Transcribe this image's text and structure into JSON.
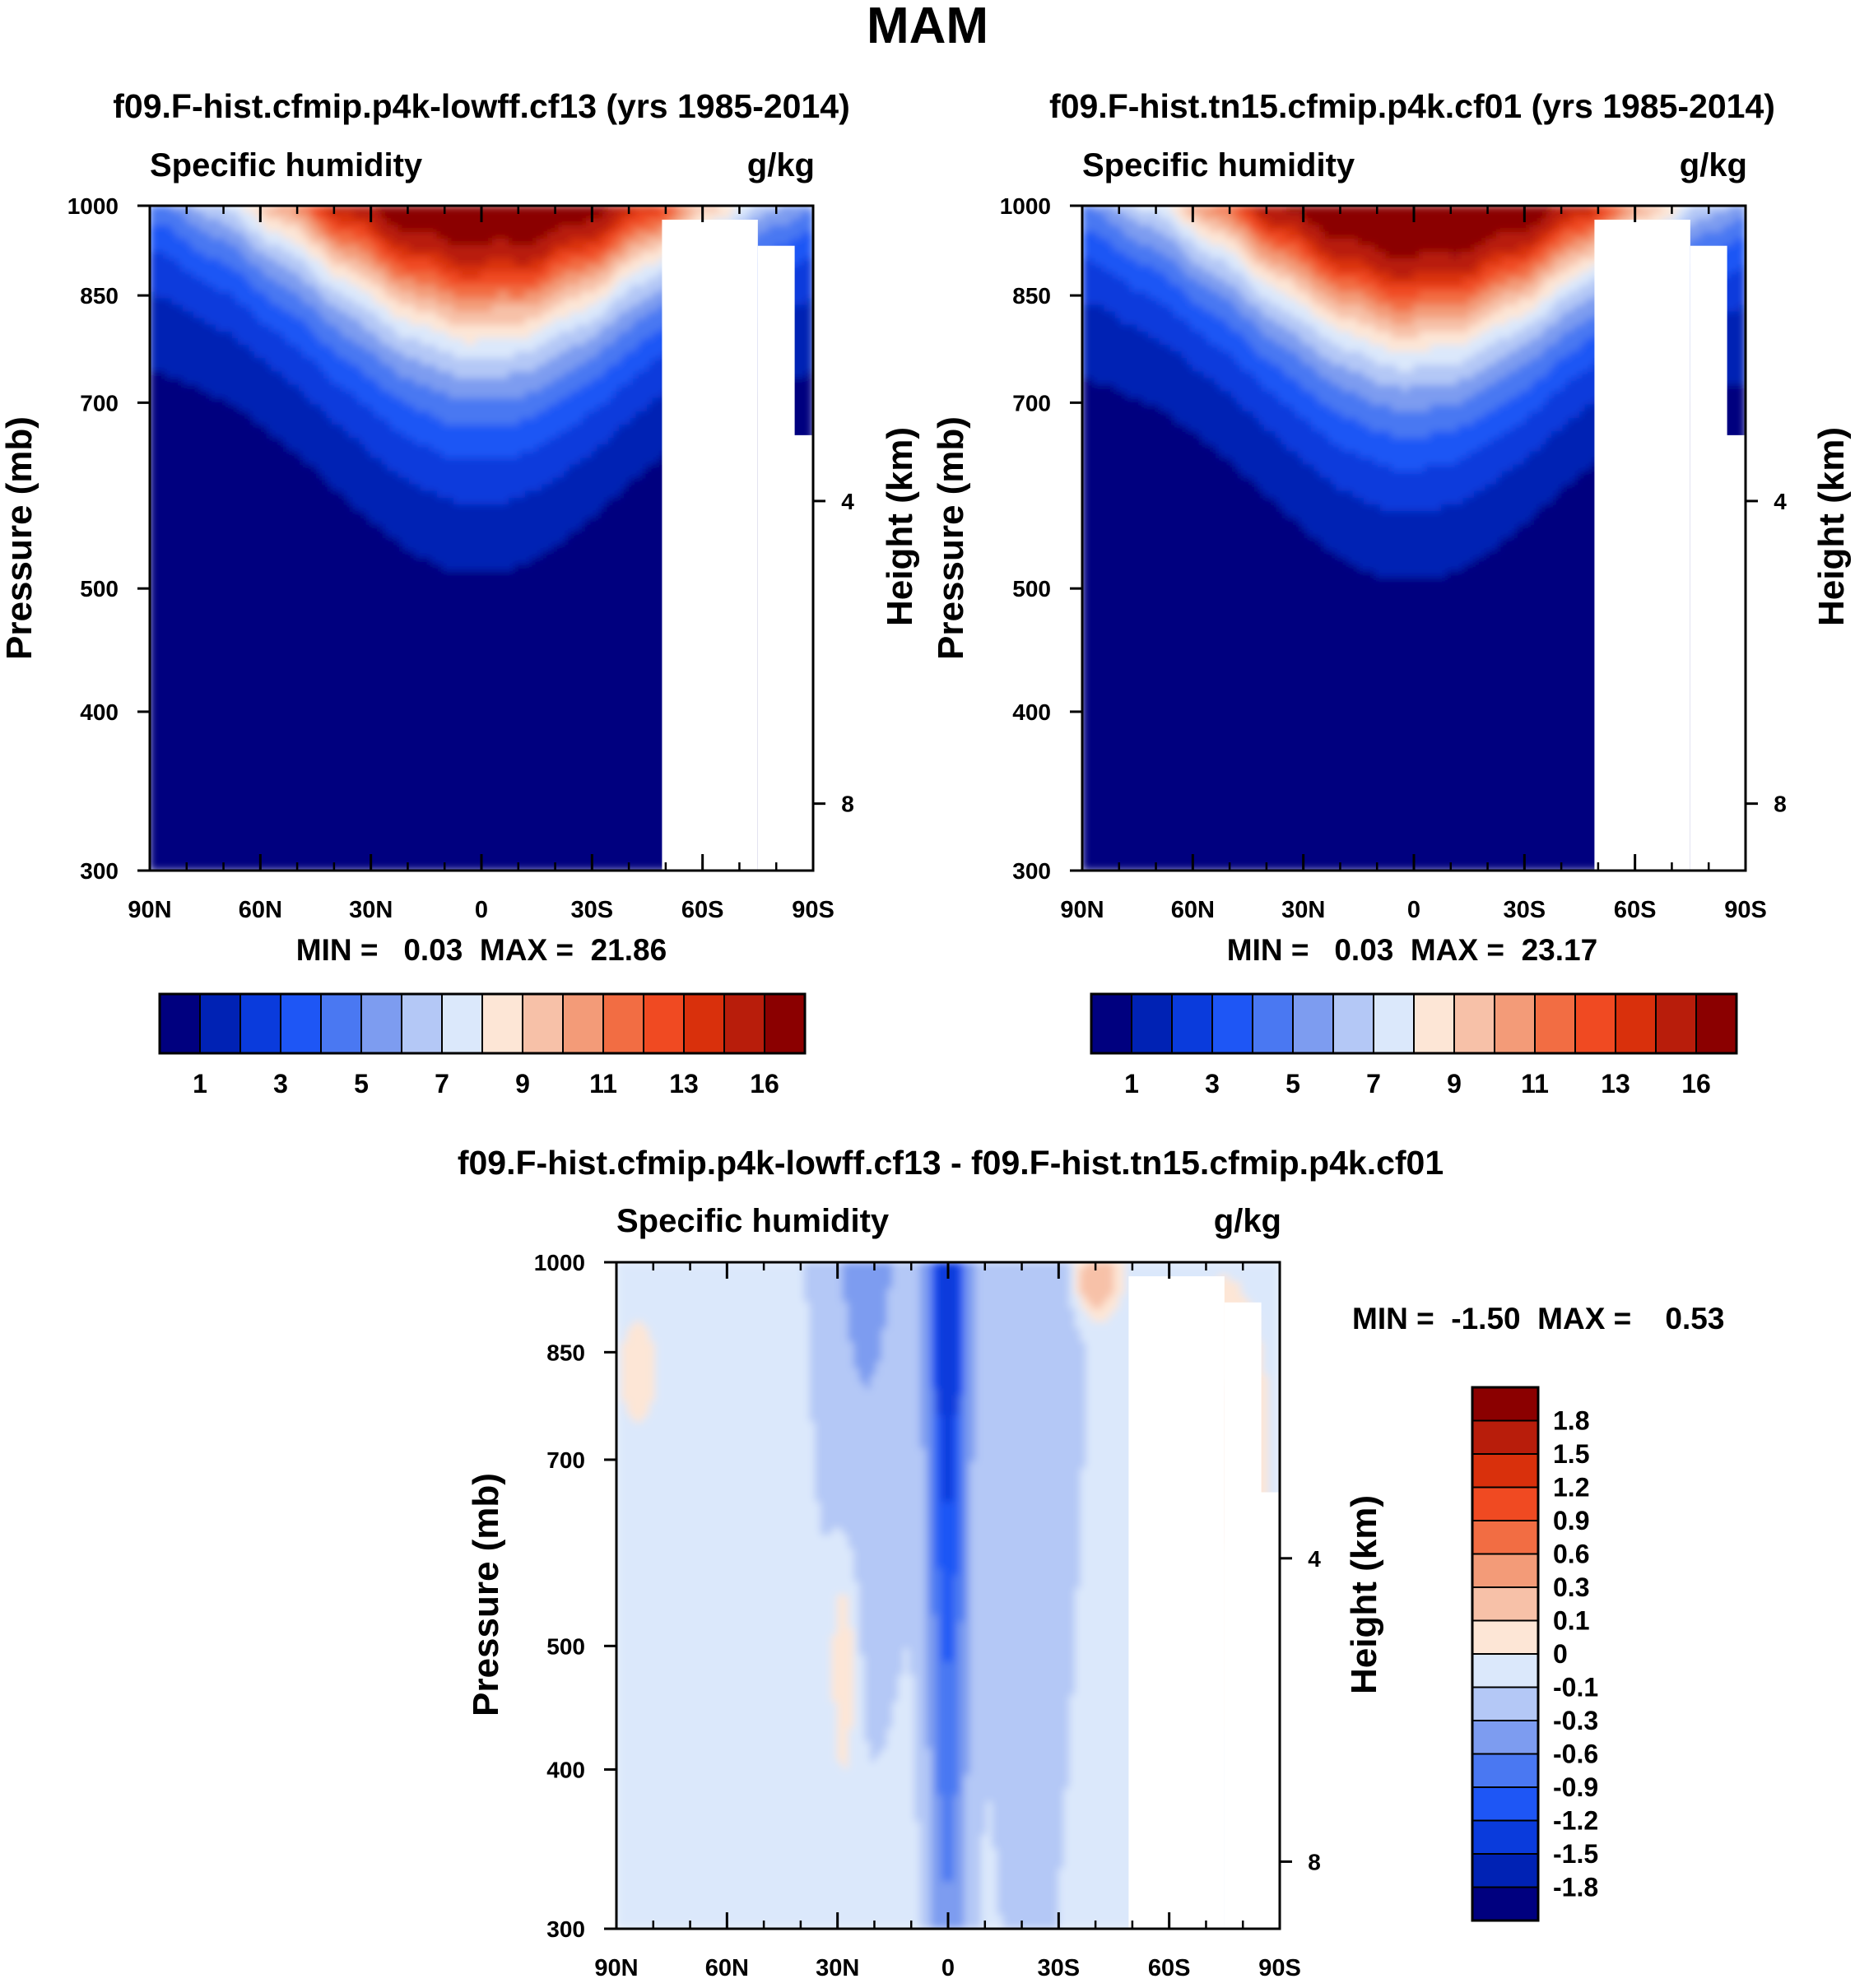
{
  "figure_title": "MAM",
  "colors": {
    "abs_scale": [
      "#00007f",
      "#0022b4",
      "#0a3bdc",
      "#1e56f5",
      "#4a78f2",
      "#7d9cf0",
      "#b4c8f6",
      "#dbe8fb",
      "#fde6d6",
      "#f7c1a8",
      "#f39b78",
      "#f26d43",
      "#f04a22",
      "#d9300c",
      "#b81d0b",
      "#8b0000"
    ],
    "diff_scale": [
      "#00007f",
      "#0022b4",
      "#0a3bdc",
      "#1e56f5",
      "#4a78f2",
      "#7d9cf0",
      "#b4c8f6",
      "#dbe8fb",
      "#fde6d6",
      "#f7c1a8",
      "#f39b78",
      "#f26d43",
      "#f04a22",
      "#d9300c",
      "#b81d0b",
      "#8b0000"
    ]
  },
  "chart_data": [
    {
      "type": "heatmap",
      "title": "f09.F-hist.cfmip.p4k-lowff.cf13 (yrs 1985-2014)",
      "left_label": "Specific humidity",
      "right_label": "g/kg",
      "ylabel": "Pressure (mb)",
      "ylabel_right": "Height (km)",
      "x_ticks": [
        "90N",
        "60N",
        "30N",
        "0",
        "30S",
        "60S",
        "90S"
      ],
      "y_ticks": [
        "300",
        "400",
        "500",
        "700",
        "850",
        "1000"
      ],
      "y_ticks_right": [
        "8",
        "4"
      ],
      "ylim": [
        1000,
        300
      ],
      "y_scale": "log",
      "stats_text": "MIN =   0.03  MAX =  21.86",
      "min": 0.03,
      "max": 21.86,
      "levels": [
        1,
        2,
        3,
        4,
        5,
        6,
        7,
        8,
        9,
        10,
        11,
        12,
        13,
        14,
        16
      ],
      "colorbar_labels": [
        "1",
        "3",
        "5",
        "7",
        "9",
        "11",
        "13",
        "16"
      ],
      "peak_latitude": 0,
      "peak_value": 21.86
    },
    {
      "type": "heatmap",
      "title": "f09.F-hist.tn15.cfmip.p4k.cf01 (yrs 1985-2014)",
      "left_label": "Specific humidity",
      "right_label": "g/kg",
      "ylabel": "Pressure (mb)",
      "ylabel_right": "Height (km)",
      "x_ticks": [
        "90N",
        "60N",
        "30N",
        "0",
        "30S",
        "60S",
        "90S"
      ],
      "y_ticks": [
        "300",
        "400",
        "500",
        "700",
        "850",
        "1000"
      ],
      "y_ticks_right": [
        "8",
        "4"
      ],
      "ylim": [
        1000,
        300
      ],
      "y_scale": "log",
      "stats_text": "MIN =   0.03  MAX =  23.17",
      "min": 0.03,
      "max": 23.17,
      "levels": [
        1,
        2,
        3,
        4,
        5,
        6,
        7,
        8,
        9,
        10,
        11,
        12,
        13,
        14,
        16
      ],
      "colorbar_labels": [
        "1",
        "3",
        "5",
        "7",
        "9",
        "11",
        "13",
        "16"
      ],
      "peak_latitude": 0,
      "peak_value": 23.17
    },
    {
      "type": "heatmap",
      "title": "f09.F-hist.cfmip.p4k-lowff.cf13 - f09.F-hist.tn15.cfmip.p4k.cf01",
      "left_label": "Specific humidity",
      "right_label": "g/kg",
      "ylabel": "Pressure (mb)",
      "ylabel_right": "Height (km)",
      "x_ticks": [
        "90N",
        "60N",
        "30N",
        "0",
        "30S",
        "60S",
        "90S"
      ],
      "y_ticks": [
        "300",
        "400",
        "500",
        "700",
        "850",
        "1000"
      ],
      "y_ticks_right": [
        "8",
        "4"
      ],
      "ylim": [
        1000,
        300
      ],
      "y_scale": "log",
      "stats_text": "MIN =  -1.50  MAX =    0.53",
      "min": -1.5,
      "max": 0.53,
      "colorbar_labels": [
        "1.8",
        "1.5",
        "1.2",
        "0.9",
        "0.6",
        "0.3",
        "0.1",
        "0",
        "-0.1",
        "-0.3",
        "-0.6",
        "-0.9",
        "-1.2",
        "-1.5",
        "-1.8"
      ]
    }
  ]
}
